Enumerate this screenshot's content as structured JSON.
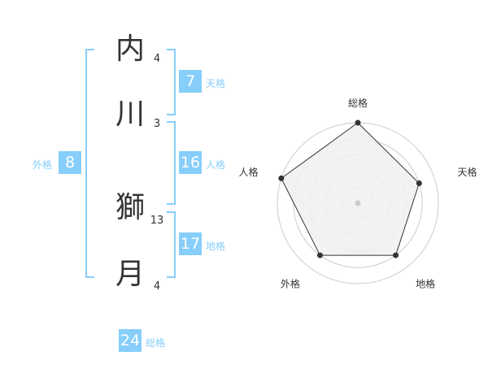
{
  "name": {
    "chars": [
      {
        "char": "内",
        "strokes": "4"
      },
      {
        "char": "川",
        "strokes": "3"
      },
      {
        "char": "獅",
        "strokes": "13"
      },
      {
        "char": "月",
        "strokes": "4"
      }
    ]
  },
  "kaku": {
    "tenkaku": {
      "label": "天格",
      "value": "7"
    },
    "jinkaku": {
      "label": "人格",
      "value": "16"
    },
    "chikaku": {
      "label": "地格",
      "value": "17"
    },
    "gaikaku": {
      "label": "外格",
      "value": "8"
    },
    "soukaku": {
      "label": "総格",
      "value": "24"
    }
  },
  "colors": {
    "accent": "#87cefa",
    "radar_fill": "#f0f0f0",
    "radar_line": "#333333"
  },
  "chart_data": {
    "type": "radar",
    "axes": [
      "総格",
      "天格",
      "地格",
      "外格",
      "人格"
    ],
    "values": [
      5,
      4,
      4,
      4,
      5
    ],
    "range": [
      0,
      5
    ],
    "rings": 5
  }
}
